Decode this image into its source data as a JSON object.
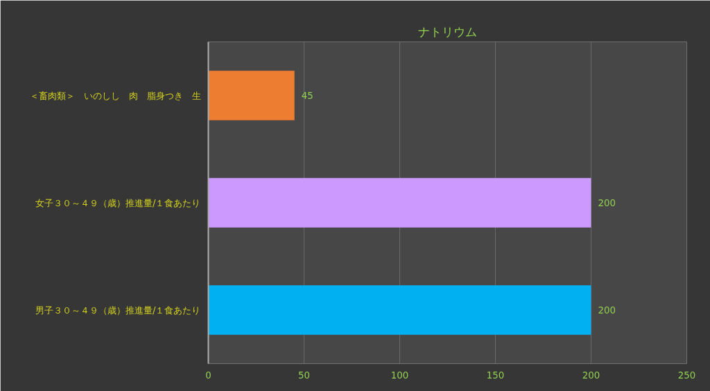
{
  "chart_data": {
    "type": "bar",
    "orientation": "horizontal",
    "title": "ナトリウム",
    "categories": [
      "＜畜肉類＞　いのしし　肉　脂身つき　生",
      "女子３０～４９（歳）推進量/１食あたり",
      "男子３０～４９（歳）推進量/１食あたり"
    ],
    "values": [
      45,
      200,
      200
    ],
    "colors": [
      "#ed7d31",
      "#cc99ff",
      "#00b0f0"
    ],
    "xlim": [
      0,
      250
    ],
    "xticks": [
      0,
      50,
      100,
      150,
      200,
      250
    ],
    "grid": "x",
    "data_labels": true
  }
}
